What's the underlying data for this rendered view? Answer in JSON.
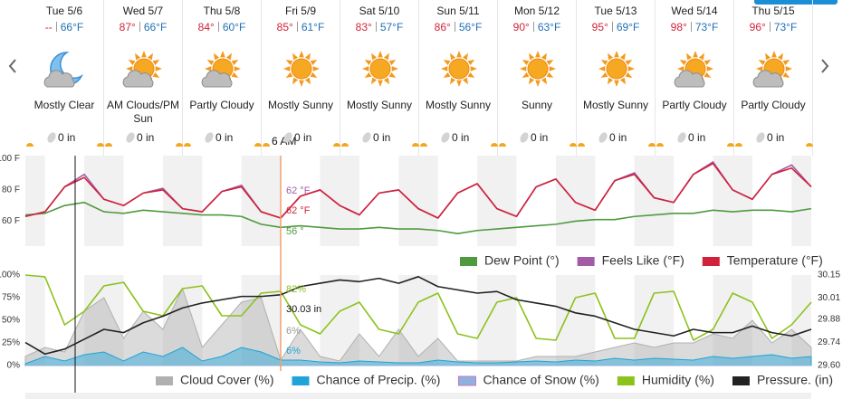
{
  "days": [
    {
      "day": "Tue 5/6",
      "high": "--",
      "low": "66°F",
      "condition": "Mostly Clear",
      "precip": "0 in"
    },
    {
      "day": "Wed 5/7",
      "high": "87°",
      "low": "66°F",
      "condition": "AM Clouds/PM Sun",
      "precip": "0 in"
    },
    {
      "day": "Thu 5/8",
      "high": "84°",
      "low": "60°F",
      "condition": "Partly Cloudy",
      "precip": "0 in"
    },
    {
      "day": "Fri 5/9",
      "high": "85°",
      "low": "61°F",
      "condition": "Mostly Sunny",
      "precip": "0 in"
    },
    {
      "day": "Sat 5/10",
      "high": "83°",
      "low": "57°F",
      "condition": "Mostly Sunny",
      "precip": "0 in"
    },
    {
      "day": "Sun 5/11",
      "high": "86°",
      "low": "56°F",
      "condition": "Mostly Sunny",
      "precip": "0 in"
    },
    {
      "day": "Mon 5/12",
      "high": "90°",
      "low": "63°F",
      "condition": "Sunny",
      "precip": "0 in"
    },
    {
      "day": "Tue 5/13",
      "high": "95°",
      "low": "69°F",
      "condition": "Mostly Sunny",
      "precip": "0 in"
    },
    {
      "day": "Wed 5/14",
      "high": "98°",
      "low": "73°F",
      "condition": "Partly Cloudy",
      "precip": "0 in"
    },
    {
      "day": "Thu 5/15",
      "high": "96°",
      "low": "73°F",
      "condition": "Partly Cloudy",
      "precip": "0 in"
    }
  ],
  "cursor": {
    "time": "6 AM",
    "feels_like": "62 °F",
    "temperature": "62 °F",
    "dew_point": "56 °",
    "humidity": "82%",
    "pressure": "30.03 in",
    "cloud_cover": "6%",
    "precip": "6%"
  },
  "chart_data": [
    {
      "type": "line",
      "grid": false,
      "x": [
        0,
        6,
        12,
        18,
        24,
        30,
        36,
        42,
        48,
        54,
        60,
        66,
        72,
        78,
        84,
        90,
        96,
        102,
        108,
        114,
        120,
        126,
        132,
        138,
        144,
        150,
        156,
        162,
        168,
        174,
        180,
        186,
        192,
        198,
        204,
        210,
        216,
        222,
        228,
        234,
        240
      ],
      "xlim": [
        0,
        240
      ],
      "ylim": [
        44,
        102
      ],
      "yticks": [
        {
          "value": 60,
          "label": "60 F"
        },
        {
          "value": 80,
          "label": "80 F"
        },
        {
          "value": 100,
          "label": "100 F"
        }
      ],
      "series": [
        {
          "name": "Dew Point (°)",
          "color": "#4f9a3f",
          "values": [
            64,
            65,
            70,
            72,
            66,
            65,
            67,
            66,
            65,
            64,
            64,
            63,
            58,
            56,
            57,
            56,
            55,
            55,
            56,
            55,
            55,
            54,
            52,
            54,
            55,
            56,
            57,
            58,
            60,
            61,
            61,
            63,
            64,
            65,
            65,
            67,
            66,
            67,
            67,
            66,
            68
          ]
        },
        {
          "name": "Feels Like (°F)",
          "color": "#a35ba6",
          "values": [
            63,
            66,
            82,
            90,
            74,
            70,
            78,
            81,
            68,
            66,
            79,
            83,
            66,
            62,
            76,
            80,
            70,
            64,
            78,
            80,
            68,
            62,
            78,
            84,
            68,
            63,
            82,
            87,
            72,
            67,
            86,
            91,
            75,
            72,
            90,
            98,
            80,
            74,
            90,
            96,
            82
          ]
        },
        {
          "name": "Temperature (°F)",
          "color": "#d0223a",
          "values": [
            63,
            66,
            82,
            88,
            74,
            70,
            78,
            80,
            68,
            66,
            79,
            82,
            66,
            62,
            76,
            80,
            70,
            64,
            78,
            80,
            68,
            62,
            78,
            84,
            68,
            63,
            82,
            87,
            72,
            67,
            86,
            90,
            75,
            72,
            90,
            97,
            80,
            74,
            90,
            94,
            82
          ]
        }
      ]
    },
    {
      "type": "line",
      "grid": false,
      "x": [
        0,
        6,
        12,
        18,
        24,
        30,
        36,
        42,
        48,
        54,
        60,
        66,
        72,
        78,
        84,
        90,
        96,
        102,
        108,
        114,
        120,
        126,
        132,
        138,
        144,
        150,
        156,
        162,
        168,
        174,
        180,
        186,
        192,
        198,
        204,
        210,
        216,
        222,
        228,
        234,
        240
      ],
      "xlim": [
        0,
        240
      ],
      "ylim": [
        0,
        100
      ],
      "yticks": [
        {
          "value": 0,
          "label": "0%"
        },
        {
          "value": 25,
          "label": "25%"
        },
        {
          "value": 50,
          "label": "50%"
        },
        {
          "value": 75,
          "label": "75%"
        },
        {
          "value": 100,
          "label": "100%"
        }
      ],
      "y2lim": [
        29.6,
        30.15
      ],
      "y2ticks": [
        {
          "value": 29.6,
          "label": "29.60"
        },
        29.74,
        29.88,
        30.01,
        30.15
      ],
      "series": [
        {
          "name": "Cloud Cover (%)",
          "type": "area",
          "color": "#b0b0b0",
          "values": [
            10,
            20,
            15,
            60,
            75,
            30,
            60,
            40,
            85,
            20,
            45,
            70,
            75,
            6,
            40,
            10,
            5,
            35,
            10,
            40,
            10,
            30,
            5,
            5,
            5,
            5,
            10,
            10,
            10,
            15,
            20,
            25,
            20,
            25,
            25,
            35,
            30,
            50,
            25,
            40,
            20
          ]
        },
        {
          "name": "Chance of Precip. (%)",
          "type": "area",
          "color": "#1fa3d8",
          "values": [
            2,
            10,
            5,
            12,
            15,
            5,
            15,
            10,
            20,
            5,
            10,
            20,
            15,
            6,
            6,
            4,
            3,
            5,
            4,
            3,
            3,
            6,
            4,
            3,
            3,
            4,
            5,
            4,
            6,
            5,
            8,
            6,
            8,
            7,
            6,
            10,
            8,
            10,
            12,
            8,
            10
          ]
        },
        {
          "name": "Chance of Snow (%)",
          "type": "area",
          "color": "#8fb0e0",
          "values": [
            0,
            0,
            0,
            0,
            0,
            0,
            0,
            0,
            0,
            0,
            0,
            0,
            0,
            0,
            0,
            0,
            0,
            0,
            0,
            0,
            0,
            0,
            0,
            0,
            0,
            0,
            0,
            0,
            0,
            0,
            0,
            0,
            0,
            0,
            0,
            0,
            0,
            0,
            0,
            0,
            0
          ]
        },
        {
          "name": "Humidity (%)",
          "type": "line",
          "color": "#8cc21c",
          "values": [
            100,
            98,
            45,
            60,
            88,
            92,
            60,
            55,
            85,
            88,
            55,
            55,
            80,
            82,
            45,
            35,
            60,
            70,
            40,
            35,
            70,
            80,
            35,
            30,
            70,
            75,
            30,
            28,
            75,
            80,
            30,
            30,
            80,
            82,
            28,
            40,
            80,
            70,
            30,
            45,
            70
          ]
        },
        {
          "name": "Pressure. (in)",
          "type": "line",
          "axis": "y2",
          "color": "#222222",
          "values": [
            29.74,
            29.67,
            29.7,
            29.76,
            29.82,
            29.8,
            29.86,
            29.9,
            29.95,
            29.98,
            30,
            30.02,
            30.02,
            30.03,
            30.08,
            30.1,
            30.12,
            30.11,
            30.13,
            30.1,
            30.14,
            30.08,
            30.06,
            30.04,
            30.05,
            30,
            29.98,
            29.96,
            29.92,
            29.9,
            29.86,
            29.82,
            29.8,
            29.78,
            29.82,
            29.8,
            29.8,
            29.84,
            29.8,
            29.78,
            29.82
          ]
        }
      ]
    }
  ]
}
